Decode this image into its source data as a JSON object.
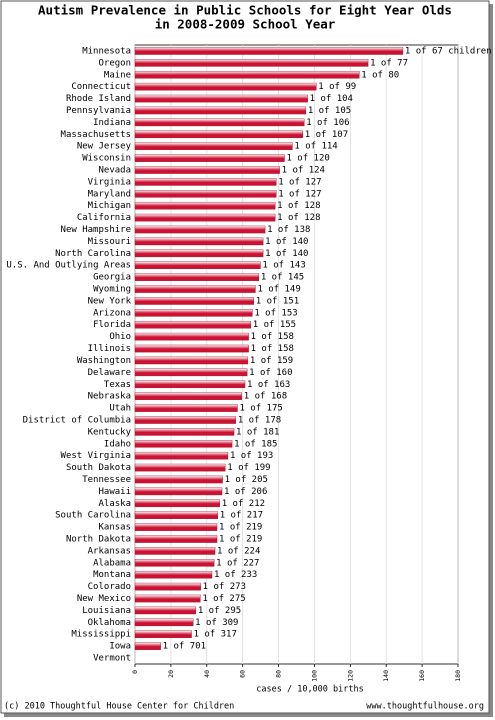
{
  "chart_data": {
    "type": "hbar",
    "title": "Autism Prevalence in Public Schools for Eight Year Olds",
    "subtitle": "in 2008-2009 School Year",
    "xlabel": "cases / 10,000 births",
    "credit": "(c) 2010 Thoughtful House Center for Children",
    "website": "www.thoughtfulhouse.org",
    "categories": [
      "Minnesota",
      "Oregon",
      "Maine",
      "Connecticut",
      "Rhode Island",
      "Pennsylvania",
      "Indiana",
      "Massachusetts",
      "New Jersey",
      "Wisconsin",
      "Nevada",
      "Virginia",
      "Maryland",
      "Michigan",
      "California",
      "New Hampshire",
      "Missouri",
      "North Carolina",
      "U.S. And Outlying Areas",
      "Georgia",
      "Wyoming",
      "New York",
      "Arizona",
      "Florida",
      "Ohio",
      "Illinois",
      "Washington",
      "Delaware",
      "Texas",
      "Nebraska",
      "Utah",
      "District of Columbia",
      "Kentucky",
      "Idaho",
      "West Virginia",
      "South Dakota",
      "Tennessee",
      "Hawaii",
      "Alaska",
      "South Carolina",
      "Kansas",
      "North Dakota",
      "Arkansas",
      "Alabama",
      "Montana",
      "Colorado",
      "New Mexico",
      "Louisiana",
      "Oklahoma",
      "Mississippi",
      "Iowa",
      "Vermont"
    ],
    "values": [
      149.3,
      129.9,
      125,
      101,
      96.2,
      95.2,
      94.3,
      93.5,
      87.7,
      83.3,
      80.6,
      78.7,
      78.7,
      78.1,
      78.1,
      72.5,
      71.4,
      71.4,
      69.9,
      69.0,
      67.1,
      66.2,
      65.4,
      64.5,
      63.3,
      63.3,
      62.9,
      62.5,
      61.3,
      59.5,
      57.1,
      56.2,
      55.2,
      54.1,
      51.8,
      50.3,
      48.8,
      48.5,
      47.2,
      46.1,
      45.7,
      45.7,
      44.6,
      44.1,
      42.9,
      36.6,
      36.4,
      33.9,
      32.4,
      31.5,
      14.3,
      null
    ],
    "value_labels": [
      "1 of 67 children",
      "1 of 77",
      "1 of 80",
      "1 of 99",
      "1 of 104",
      "1 of 105",
      "1 of 106",
      "1 of 107",
      "1 of 114",
      "1 of 120",
      "1 of 124",
      "1 of 127",
      "1 of 127",
      "1 of 128",
      "1 of 128",
      "1 of 138",
      "1 of 140",
      "1 of 140",
      "1 of 143",
      "1 of 145",
      "1 of 149",
      "1 of 151",
      "1 of 153",
      "1 of 155",
      "1 of 158",
      "1 of 158",
      "1 of 159",
      "1 of 160",
      "1 of 163",
      "1 of 168",
      "1 of 175",
      "1 of 178",
      "1 of 181",
      "1 of 185",
      "1 of 193",
      "1 of 199",
      "1 of 205",
      "1 of 206",
      "1 of 212",
      "1 of 217",
      "1 of 219",
      "1 of 219",
      "1 of 224",
      "1 of 227",
      "1 of 233",
      "1 of 273",
      "1 of 275",
      "1 of 295",
      "1 of 309",
      "1 of 317",
      "1 of 701",
      null
    ],
    "color": "#cc1133",
    "xlim": [
      0,
      180
    ],
    "xticks": [
      0,
      20,
      40,
      60,
      80,
      100,
      120,
      140,
      160,
      180
    ],
    "grid": true
  }
}
